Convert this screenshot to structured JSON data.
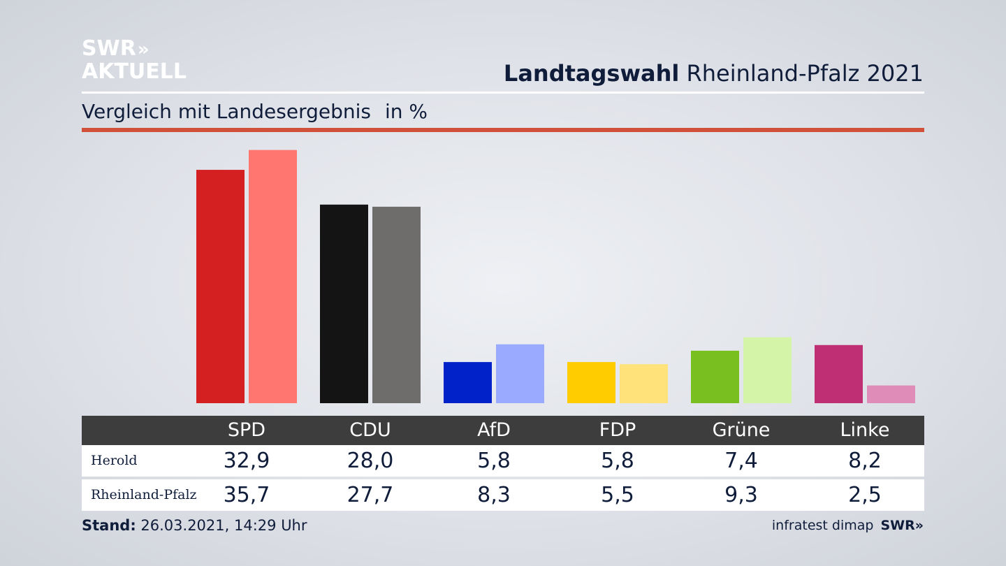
{
  "logo": {
    "line1": "SWR",
    "arrows": "»",
    "line2": "AKTUELL"
  },
  "header": {
    "title_bold": "Landtagswahl",
    "title_rest": "Rheinland-Pfalz 2021"
  },
  "subtitle": {
    "text": "Vergleich mit Landesergebnis",
    "unit": "in %"
  },
  "colors": {
    "SPD": [
      "#d42020",
      "#ff7570"
    ],
    "CDU": [
      "#141414",
      "#6e6d6b"
    ],
    "AfD": [
      "#0022c8",
      "#9aabff"
    ],
    "FDP": [
      "#ffcc00",
      "#ffe37a"
    ],
    "Grüne": [
      "#7abf20",
      "#d4f5a8"
    ],
    "Linke": [
      "#be2f74",
      "#e08cb8"
    ]
  },
  "chart_data": {
    "type": "bar",
    "categories": [
      "SPD",
      "CDU",
      "AfD",
      "FDP",
      "Grüne",
      "Linke"
    ],
    "series": [
      {
        "name": "Herold",
        "values": [
          32.9,
          28.0,
          5.8,
          5.8,
          7.4,
          8.2
        ]
      },
      {
        "name": "Rheinland-Pfalz",
        "values": [
          35.7,
          27.7,
          8.3,
          5.5,
          9.3,
          2.5
        ]
      }
    ],
    "ylim": [
      0,
      36
    ]
  },
  "table": {
    "headers": [
      "SPD",
      "CDU",
      "AfD",
      "FDP",
      "Grüne",
      "Linke"
    ],
    "rows": [
      {
        "label": "Herold",
        "values": [
          "32,9",
          "28,0",
          "5,8",
          "5,8",
          "7,4",
          "8,2"
        ]
      },
      {
        "label": "Rheinland-Pfalz",
        "values": [
          "35,7",
          "27,7",
          "8,3",
          "5,5",
          "9,3",
          "2,5"
        ]
      }
    ]
  },
  "footer": {
    "stand_label": "Stand:",
    "stand_value": "26.03.2021, 14:29 Uhr",
    "source": "infratest dimap",
    "source_brand": "SWR»"
  }
}
